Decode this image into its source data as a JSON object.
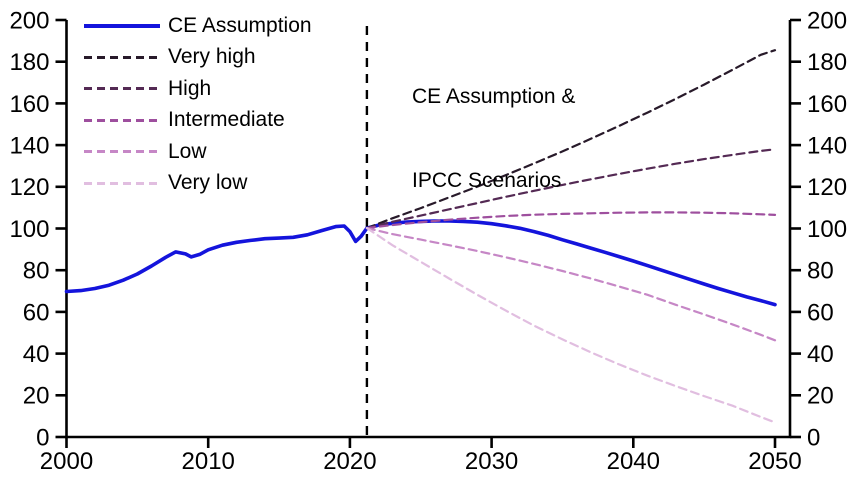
{
  "annotation": {
    "line1": "CE Assumption &",
    "line2": "IPCC Scenarios"
  },
  "chart_data": {
    "type": "line",
    "title": "",
    "xlabel": "",
    "ylabel": "",
    "grid": false,
    "legend_position": "top-left",
    "background_color": "#ffffff",
    "axis_color": "#000000",
    "x_axis": {
      "min": 2000,
      "max": 2050,
      "ticks": [
        2000,
        2010,
        2020,
        2030,
        2040,
        2050
      ]
    },
    "y_axis_left": {
      "min": 0,
      "max": 200,
      "ticks": [
        0,
        20,
        40,
        60,
        80,
        100,
        120,
        140,
        160,
        180,
        200
      ]
    },
    "y_axis_right": {
      "min": 0,
      "max": 200,
      "ticks": [
        0,
        20,
        40,
        60,
        80,
        100,
        120,
        140,
        160,
        180,
        200
      ]
    },
    "divider": {
      "x": 2021.2,
      "style": "dashed",
      "color": "#000000"
    },
    "series": [
      {
        "name": "CE Assumption",
        "color": "#1414dc",
        "style": "solid",
        "width": 3.6,
        "points": [
          [
            2000,
            69.8
          ],
          [
            2001,
            70.2
          ],
          [
            2002,
            71.2
          ],
          [
            2003,
            72.8
          ],
          [
            2004,
            75.2
          ],
          [
            2005,
            78.2
          ],
          [
            2006,
            82.0
          ],
          [
            2007,
            86.2
          ],
          [
            2007.7,
            88.8
          ],
          [
            2008.4,
            87.8
          ],
          [
            2008.8,
            86.4
          ],
          [
            2009.4,
            87.6
          ],
          [
            2010,
            89.8
          ],
          [
            2011,
            92.0
          ],
          [
            2012,
            93.4
          ],
          [
            2013,
            94.3
          ],
          [
            2014,
            95.1
          ],
          [
            2015,
            95.4
          ],
          [
            2016,
            95.8
          ],
          [
            2017,
            97.0
          ],
          [
            2018,
            99.0
          ],
          [
            2019,
            100.9
          ],
          [
            2019.6,
            101.2
          ],
          [
            2020,
            98.5
          ],
          [
            2020.4,
            93.8
          ],
          [
            2020.8,
            96.3
          ],
          [
            2021.2,
            100.2
          ],
          [
            2022,
            101.6
          ],
          [
            2023,
            102.5
          ],
          [
            2024,
            103.1
          ],
          [
            2025,
            103.4
          ],
          [
            2026,
            103.6
          ],
          [
            2027,
            103.6
          ],
          [
            2028,
            103.4
          ],
          [
            2029,
            103.0
          ],
          [
            2030,
            102.3
          ],
          [
            2031,
            101.3
          ],
          [
            2032,
            100.1
          ],
          [
            2033,
            98.5
          ],
          [
            2034,
            96.7
          ],
          [
            2035,
            94.6
          ],
          [
            2036,
            92.6
          ],
          [
            2037,
            90.6
          ],
          [
            2038,
            88.6
          ],
          [
            2039,
            86.5
          ],
          [
            2040,
            84.4
          ],
          [
            2041,
            82.2
          ],
          [
            2042,
            80.0
          ],
          [
            2043,
            77.8
          ],
          [
            2044,
            75.6
          ],
          [
            2045,
            73.4
          ],
          [
            2046,
            71.2
          ],
          [
            2047,
            69.2
          ],
          [
            2048,
            67.2
          ],
          [
            2049,
            65.4
          ],
          [
            2050,
            63.5
          ]
        ]
      },
      {
        "name": "Very high",
        "color": "#281a2a",
        "style": "dashed",
        "width": 2.2,
        "points": [
          [
            2021.2,
            100.2
          ],
          [
            2023,
            104.9
          ],
          [
            2025,
            109.8
          ],
          [
            2027,
            114.9
          ],
          [
            2029,
            120.1
          ],
          [
            2031,
            125.6
          ],
          [
            2033,
            131.2
          ],
          [
            2035,
            137.0
          ],
          [
            2037,
            143.0
          ],
          [
            2039,
            149.2
          ],
          [
            2041,
            155.6
          ],
          [
            2043,
            162.2
          ],
          [
            2045,
            169.0
          ],
          [
            2047,
            176.1
          ],
          [
            2049,
            183.3
          ],
          [
            2050,
            185.5
          ]
        ]
      },
      {
        "name": "High",
        "color": "#542a54",
        "style": "dashed",
        "width": 2.2,
        "points": [
          [
            2021.2,
            100.2
          ],
          [
            2023,
            103.2
          ],
          [
            2025,
            106.2
          ],
          [
            2027,
            109.2
          ],
          [
            2029,
            112.2
          ],
          [
            2031,
            115.2
          ],
          [
            2033,
            118.1
          ],
          [
            2035,
            120.9
          ],
          [
            2037,
            123.6
          ],
          [
            2039,
            126.2
          ],
          [
            2041,
            128.7
          ],
          [
            2043,
            131.1
          ],
          [
            2045,
            133.3
          ],
          [
            2047,
            135.3
          ],
          [
            2049,
            137.2
          ],
          [
            2050,
            138.0
          ]
        ]
      },
      {
        "name": "Intermediate",
        "color": "#9e4f9e",
        "style": "dashed",
        "width": 2.2,
        "points": [
          [
            2021.2,
            100.2
          ],
          [
            2023,
            101.7
          ],
          [
            2025,
            103.0
          ],
          [
            2027,
            104.2
          ],
          [
            2029,
            105.2
          ],
          [
            2031,
            106.0
          ],
          [
            2033,
            106.6
          ],
          [
            2035,
            107.0
          ],
          [
            2037,
            107.3
          ],
          [
            2039,
            107.6
          ],
          [
            2041,
            107.7
          ],
          [
            2043,
            107.7
          ],
          [
            2045,
            107.6
          ],
          [
            2047,
            107.3
          ],
          [
            2049,
            106.8
          ],
          [
            2050,
            106.5
          ]
        ]
      },
      {
        "name": "Low",
        "color": "#c687c6",
        "style": "dashed",
        "width": 2.2,
        "points": [
          [
            2021.2,
            100.2
          ],
          [
            2023,
            97.3
          ],
          [
            2025,
            94.7
          ],
          [
            2027,
            92.0
          ],
          [
            2029,
            89.2
          ],
          [
            2031,
            86.2
          ],
          [
            2033,
            83.0
          ],
          [
            2035,
            79.6
          ],
          [
            2037,
            76.0
          ],
          [
            2039,
            72.2
          ],
          [
            2041,
            68.2
          ],
          [
            2043,
            63.4
          ],
          [
            2045,
            58.8
          ],
          [
            2047,
            54.0
          ],
          [
            2049,
            49.0
          ],
          [
            2050,
            46.4
          ]
        ]
      },
      {
        "name": "Very low",
        "color": "#e1bee0",
        "style": "dashed",
        "width": 2.2,
        "points": [
          [
            2021.2,
            100.2
          ],
          [
            2023,
            92.0
          ],
          [
            2025,
            84.0
          ],
          [
            2027,
            76.0
          ],
          [
            2029,
            68.2
          ],
          [
            2031,
            60.6
          ],
          [
            2033,
            53.4
          ],
          [
            2035,
            46.8
          ],
          [
            2037,
            40.6
          ],
          [
            2039,
            34.8
          ],
          [
            2041,
            29.4
          ],
          [
            2043,
            24.4
          ],
          [
            2045,
            19.6
          ],
          [
            2047,
            15.0
          ],
          [
            2049,
            9.6
          ],
          [
            2050,
            7.0
          ]
        ]
      }
    ]
  }
}
